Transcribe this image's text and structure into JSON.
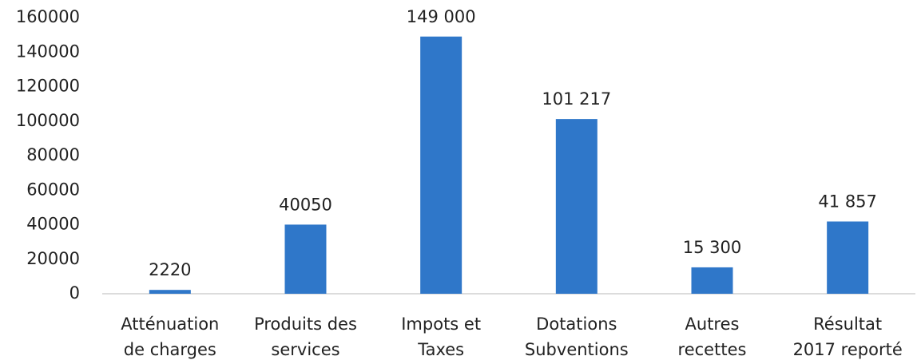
{
  "chart_data": {
    "type": "bar",
    "categories": [
      [
        "Atténuation",
        "de charges"
      ],
      [
        "Produits des",
        "services"
      ],
      [
        "Impots et",
        "Taxes"
      ],
      [
        "Dotations",
        "Subventions"
      ],
      [
        "Autres",
        "recettes"
      ],
      [
        "Résultat",
        "2017 reporté"
      ]
    ],
    "values": [
      2220,
      40050,
      149000,
      101217,
      15300,
      41857
    ],
    "value_labels": [
      "2220",
      "40050",
      "149 000",
      "101 217",
      "15 300",
      "41 857"
    ],
    "color": "#2f77c9",
    "ylim": [
      0,
      160000
    ],
    "yticks": [
      0,
      20000,
      40000,
      60000,
      80000,
      100000,
      120000,
      140000,
      160000
    ],
    "grid": false
  }
}
